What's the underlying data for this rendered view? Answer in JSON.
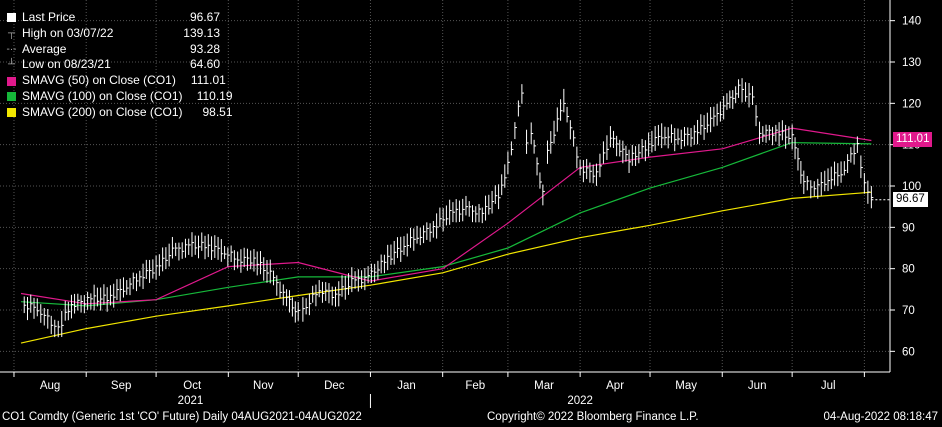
{
  "legend": [
    {
      "label": "Last Price",
      "value": "96.67",
      "marker": "square",
      "color": "#ffffff"
    },
    {
      "label": "High on 03/07/22",
      "value": "139.13",
      "marker": "high",
      "color": "#aaaaaa"
    },
    {
      "label": "Average",
      "value": "93.28",
      "marker": "avg",
      "color": "#aaaaaa"
    },
    {
      "label": "Low on 08/23/21",
      "value": "64.60",
      "marker": "low",
      "color": "#aaaaaa"
    },
    {
      "label": "SMAVG (50)  on Close (CO1)",
      "value": "111.01",
      "marker": "square",
      "color": "#e0198c"
    },
    {
      "label": "SMAVG (100)  on Close (CO1)",
      "value": "110.19",
      "marker": "square",
      "color": "#16b83a"
    },
    {
      "label": "SMAVG (200)  on Close (CO1)",
      "value": "98.51",
      "marker": "square",
      "color": "#f2e600"
    }
  ],
  "footer": {
    "left": "CO1 Comdty (Generic 1st 'CO' Future)  Daily 04AUG2021-04AUG2022",
    "center": "Copyright© 2022 Bloomberg Finance L.P.",
    "right": "04-Aug-2022 08:18:47"
  },
  "price_tags": [
    {
      "text": "111.01",
      "value": 111.01,
      "bg": "#e0198c",
      "fg": "#ffffff"
    },
    {
      "text": "96.67",
      "value": 96.67,
      "bg": "#ffffff",
      "fg": "#000000"
    }
  ],
  "chart_data": {
    "type": "line",
    "title": "",
    "xlabel": "",
    "ylabel": "",
    "ylim": [
      55,
      145
    ],
    "y_ticks": [
      60,
      70,
      80,
      90,
      100,
      110,
      120,
      130,
      140
    ],
    "month_labels": [
      "Aug",
      "Sep",
      "Oct",
      "Nov",
      "Dec",
      "Jan",
      "Feb",
      "Mar",
      "Apr",
      "May",
      "Jun",
      "Jul"
    ],
    "year_labels": [
      "2021",
      "2022"
    ],
    "grid": true,
    "legend_position": "top-left",
    "series": [
      {
        "name": "Last Price",
        "color": "#ffffff",
        "x": [
          "2021-08-04",
          "2021-08-11",
          "2021-08-20",
          "2021-08-23",
          "2021-08-27",
          "2021-09-03",
          "2021-09-10",
          "2021-09-17",
          "2021-09-24",
          "2021-10-01",
          "2021-10-08",
          "2021-10-15",
          "2021-10-22",
          "2021-10-29",
          "2021-11-05",
          "2021-11-12",
          "2021-11-19",
          "2021-11-26",
          "2021-12-01",
          "2021-12-03",
          "2021-12-10",
          "2021-12-17",
          "2021-12-24",
          "2021-12-31",
          "2022-01-07",
          "2022-01-14",
          "2022-01-21",
          "2022-01-28",
          "2022-02-04",
          "2022-02-11",
          "2022-02-18",
          "2022-02-25",
          "2022-03-01",
          "2022-03-07",
          "2022-03-09",
          "2022-03-11",
          "2022-03-16",
          "2022-03-18",
          "2022-03-25",
          "2022-04-01",
          "2022-04-08",
          "2022-04-14",
          "2022-04-22",
          "2022-04-29",
          "2022-05-06",
          "2022-05-13",
          "2022-05-20",
          "2022-05-27",
          "2022-06-03",
          "2022-06-08",
          "2022-06-14",
          "2022-06-17",
          "2022-06-24",
          "2022-07-01",
          "2022-07-06",
          "2022-07-12",
          "2022-07-15",
          "2022-07-22",
          "2022-07-29",
          "2022-08-01",
          "2022-08-04"
        ],
        "values": [
          71.3,
          70.5,
          65.2,
          68.8,
          71.5,
          72.6,
          72.9,
          75.3,
          78.2,
          80.1,
          84.2,
          85.5,
          85.6,
          84.4,
          82.4,
          82.1,
          78.6,
          72.7,
          69.1,
          69.9,
          75.1,
          73.5,
          76.8,
          77.8,
          81.8,
          85.0,
          87.9,
          90.0,
          93.3,
          94.4,
          93.5,
          97.9,
          105.0,
          123.2,
          111.1,
          112.7,
          98.0,
          107.9,
          120.7,
          104.4,
          102.8,
          111.7,
          106.6,
          109.3,
          112.4,
          111.6,
          112.6,
          115.6,
          119.7,
          123.6,
          121.2,
          113.1,
          113.1,
          111.6,
          100.7,
          99.5,
          101.2,
          103.2,
          110.0,
          100.0,
          96.67
        ]
      },
      {
        "name": "SMAVG (50)  on Close (CO1)",
        "color": "#e0198c",
        "x": [
          "2021-08-04",
          "2021-09-01",
          "2021-10-01",
          "2021-11-01",
          "2021-12-01",
          "2022-01-01",
          "2022-02-01",
          "2022-03-01",
          "2022-04-01",
          "2022-05-01",
          "2022-06-01",
          "2022-07-01",
          "2022-08-04"
        ],
        "values": [
          74.0,
          71.5,
          72.5,
          80.5,
          81.5,
          77.0,
          80.0,
          91.0,
          104.5,
          107.0,
          109.0,
          114.0,
          111.01
        ]
      },
      {
        "name": "SMAVG (100)  on Close (CO1)",
        "color": "#16b83a",
        "x": [
          "2021-08-04",
          "2021-09-01",
          "2021-10-01",
          "2021-11-01",
          "2021-12-01",
          "2022-01-01",
          "2022-02-01",
          "2022-03-01",
          "2022-04-01",
          "2022-05-01",
          "2022-06-01",
          "2022-07-01",
          "2022-08-04"
        ],
        "values": [
          72.0,
          71.0,
          72.5,
          75.5,
          78.0,
          78.0,
          80.5,
          85.0,
          93.5,
          99.5,
          104.5,
          110.5,
          110.19
        ]
      },
      {
        "name": "SMAVG (200)  on Close (CO1)",
        "color": "#f2e600",
        "x": [
          "2021-08-04",
          "2021-09-01",
          "2021-10-01",
          "2021-11-01",
          "2021-12-01",
          "2022-01-01",
          "2022-02-01",
          "2022-03-01",
          "2022-04-01",
          "2022-05-01",
          "2022-06-01",
          "2022-07-01",
          "2022-08-04"
        ],
        "values": [
          62.0,
          65.5,
          68.5,
          71.0,
          73.5,
          76.0,
          79.0,
          83.5,
          87.5,
          90.5,
          94.0,
          97.0,
          98.51
        ]
      }
    ]
  }
}
